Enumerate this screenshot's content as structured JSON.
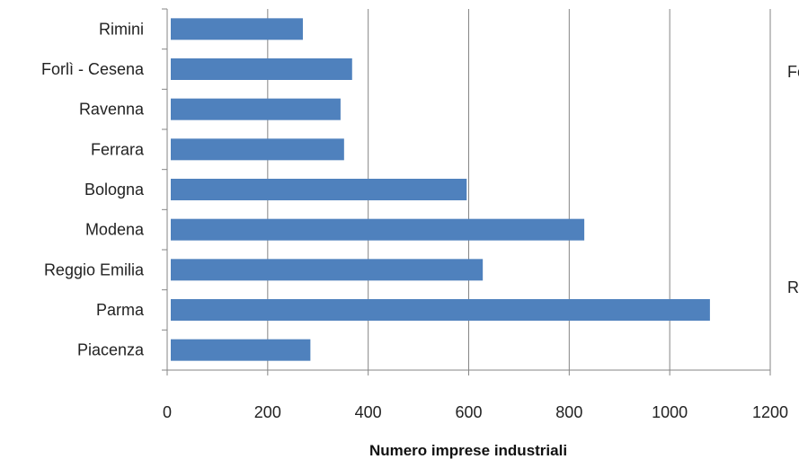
{
  "chart_data": {
    "type": "bar",
    "orientation": "horizontal",
    "categories": [
      "Rimini",
      "Forlì - Cesena",
      "Ravenna",
      "Ferrara",
      "Bologna",
      "Modena",
      "Reggio Emilia",
      "Parma",
      "Piacenza"
    ],
    "values": [
      270,
      368,
      345,
      352,
      596,
      830,
      628,
      1080,
      285
    ],
    "xlabel": "Numero imprese industriali",
    "ylabel": "",
    "xlim": [
      0,
      1200
    ],
    "xticks": [
      "0",
      "200",
      "400",
      "600",
      "800",
      "1000",
      "1200"
    ],
    "grid": true,
    "bar_color": "#4F81BD",
    "clipped_texts": [
      "Fo",
      "R"
    ]
  }
}
